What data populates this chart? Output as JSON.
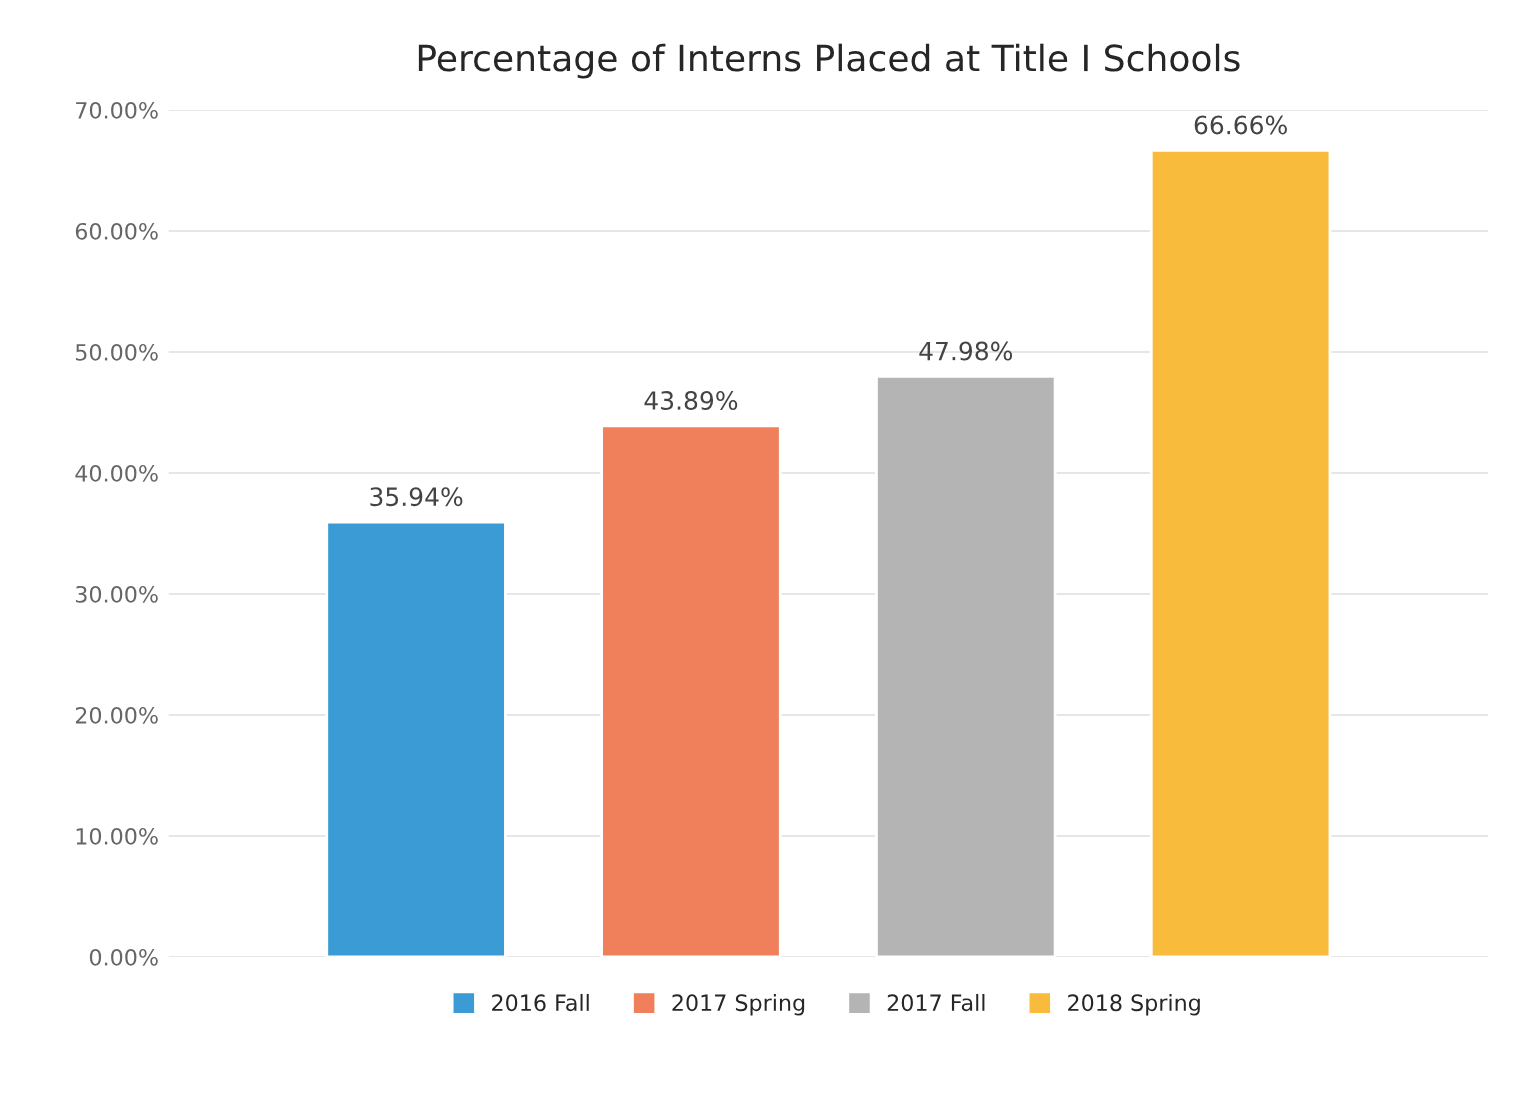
{
  "chart_data": {
    "type": "bar",
    "title": "Percentage of Interns Placed at Title I Schools",
    "categories": [
      null,
      null,
      null,
      null
    ],
    "series": [
      {
        "name": "2016 Fall",
        "color": "#3a9bd5",
        "values": [
          35.94,
          null,
          null,
          null
        ],
        "value_labels": [
          "35.94%",
          null,
          null,
          null
        ]
      },
      {
        "name": "2017 Spring",
        "color": "#f07f5b",
        "values": [
          null,
          43.89,
          null,
          null
        ],
        "value_labels": [
          null,
          "43.89%",
          null,
          null
        ]
      },
      {
        "name": "2017 Fall",
        "color": "#b4b4b4",
        "values": [
          null,
          null,
          47.98,
          null
        ],
        "value_labels": [
          null,
          null,
          "47.98%",
          null
        ]
      },
      {
        "name": "2018 Spring",
        "color": "#f9bb3c",
        "values": [
          null,
          null,
          null,
          66.66
        ],
        "value_labels": [
          null,
          null,
          null,
          "66.66%"
        ]
      }
    ],
    "ylim": [
      0,
      70
    ],
    "yticks": [
      {
        "value": 0,
        "label": "0.00%"
      },
      {
        "value": 10,
        "label": "10.00%"
      },
      {
        "value": 20,
        "label": "20.00%"
      },
      {
        "value": 30,
        "label": "30.00%"
      },
      {
        "value": 40,
        "label": "40.00%"
      },
      {
        "value": 50,
        "label": "50.00%"
      },
      {
        "value": 60,
        "label": "60.00%"
      },
      {
        "value": 70,
        "label": "70.00%"
      }
    ],
    "grid": "y",
    "legend": "bottom"
  }
}
